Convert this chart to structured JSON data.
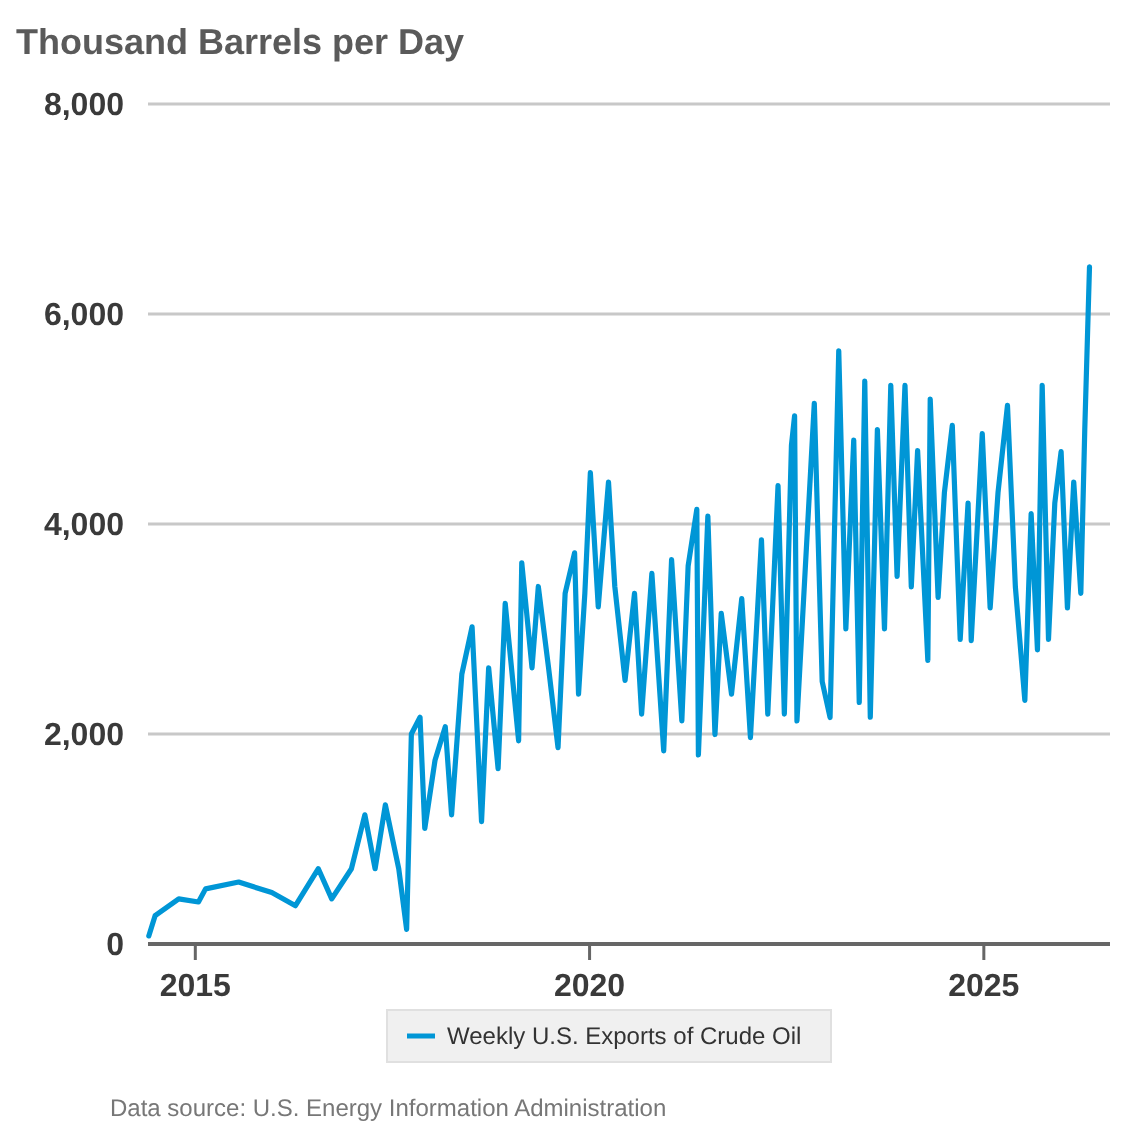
{
  "chart_data": {
    "type": "line",
    "title": "Thousand Barrels per Day",
    "annotations": [
      "Data source: U.S. Energy Information Administration"
    ],
    "xlim": [
      2014.4,
      2026.6
    ],
    "xticks": [
      2015,
      2020,
      2025
    ],
    "ylim": [
      0,
      8000
    ],
    "yticks": [
      {
        "value": 0,
        "label": "0"
      },
      {
        "value": 2000,
        "label": "2,000"
      },
      {
        "value": 4000,
        "label": "4,000"
      },
      {
        "value": 6000,
        "label": "6,000"
      },
      {
        "value": 8000,
        "label": "8,000"
      }
    ],
    "grid": "y",
    "legend": "bottom",
    "marker": "none",
    "line_style": "solid",
    "x": [
      2014.41,
      2014.49,
      2014.79,
      2015.04,
      2015.13,
      2015.55,
      2015.97,
      2016.27,
      2016.56,
      2016.73,
      2016.98,
      2017.15,
      2017.28,
      2017.41,
      2017.58,
      2017.68,
      2017.74,
      2017.85,
      2017.91,
      2018.04,
      2018.17,
      2018.25,
      2018.38,
      2018.51,
      2018.63,
      2018.72,
      2018.84,
      2018.93,
      2019.1,
      2019.14,
      2019.27,
      2019.35,
      2019.48,
      2019.6,
      2019.69,
      2019.81,
      2019.86,
      2019.94,
      2020.01,
      2020.11,
      2020.24,
      2020.32,
      2020.45,
      2020.57,
      2020.66,
      2020.79,
      2020.94,
      2021.04,
      2021.17,
      2021.25,
      2021.36,
      2021.38,
      2021.5,
      2021.59,
      2021.67,
      2021.8,
      2021.93,
      2022.04,
      2022.18,
      2022.26,
      2022.39,
      2022.47,
      2022.56,
      2022.6,
      2022.63,
      2022.85,
      2022.95,
      2023.05,
      2023.16,
      2023.25,
      2023.35,
      2023.42,
      2023.49,
      2023.56,
      2023.65,
      2023.74,
      2023.82,
      2023.9,
      2024.0,
      2024.08,
      2024.16,
      2024.29,
      2024.32,
      2024.42,
      2024.5,
      2024.6,
      2024.7,
      2024.8,
      2024.84,
      2024.98,
      2025.08,
      2025.18,
      2025.3,
      2025.4,
      2025.52,
      2025.6,
      2025.68,
      2025.74,
      2025.82,
      2025.9,
      2025.98,
      2026.06,
      2026.14,
      2026.23,
      2026.28,
      2026.34
    ],
    "series": [
      {
        "name": "Weekly U.S. Exports of Crude Oil",
        "color": "#0096d6",
        "values": [
          77,
          270,
          430,
          400,
          525,
          590,
          490,
          365,
          717,
          430,
          717,
          1230,
          717,
          1325,
          717,
          140,
          2000,
          2160,
          1100,
          1750,
          2070,
          1230,
          2570,
          3020,
          1165,
          2630,
          1670,
          3245,
          1935,
          3630,
          2630,
          3405,
          2630,
          1870,
          3340,
          3725,
          2380,
          3340,
          4490,
          3210,
          4400,
          3405,
          2510,
          3340,
          2190,
          3530,
          1840,
          3660,
          2125,
          3600,
          4140,
          1800,
          4075,
          1995,
          3150,
          2380,
          3290,
          1965,
          3850,
          2190,
          4365,
          2190,
          4750,
          5030,
          2125,
          5150,
          2500,
          2157,
          5650,
          3000,
          4800,
          2300,
          5360,
          2160,
          4900,
          3000,
          5320,
          3500,
          5320,
          3400,
          4700,
          2700,
          5190,
          3300,
          4300,
          4940,
          2900,
          4200,
          2890,
          4860,
          3200,
          4300,
          5130,
          3400,
          2320,
          4100,
          2800,
          5320,
          2900,
          4200,
          4690,
          3200,
          4400,
          3340,
          4900,
          6450
        ]
      }
    ]
  }
}
